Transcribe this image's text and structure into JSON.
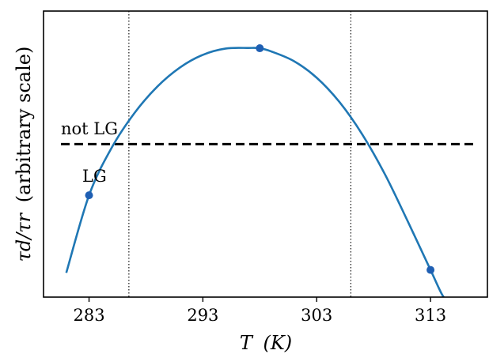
{
  "chart_data": {
    "type": "line",
    "xlabel": "T (K)",
    "xlabel_main": "T",
    "xlabel_paren": "(K)",
    "ylabel": "τd/τr (arbitrary scale)",
    "ylabel_main": "τd/τr",
    "ylabel_paren": "(arbitrary scale)",
    "xlim": [
      279.0,
      318.0
    ],
    "ylim": [
      0,
      10
    ],
    "x_ticks": [
      283,
      293,
      303,
      313
    ],
    "x_tick_labels": [
      "283",
      "293",
      "303",
      "313"
    ],
    "grid": false,
    "series": [
      {
        "color": "#1f77b4",
        "x": [
          281.0,
          283.0,
          285.0,
          287.0,
          289.0,
          291.0,
          293.0,
          295.0,
          297.0,
          298.0,
          299.0,
          301.0,
          303.0,
          305.0,
          307.0,
          309.0,
          311.0,
          313.0,
          314.0,
          314.5
        ],
        "y": [
          0.85,
          3.56,
          5.23,
          6.44,
          7.36,
          8.03,
          8.47,
          8.69,
          8.71,
          8.7,
          8.59,
          8.25,
          7.67,
          6.82,
          5.69,
          4.29,
          2.65,
          0.95,
          0.1,
          -0.15
        ]
      }
    ],
    "markers": {
      "color": "#1f5fb3",
      "x": [
        283.0,
        298.0,
        313.0
      ],
      "y": [
        3.56,
        8.7,
        0.95
      ]
    },
    "threshold": {
      "y": 5.35,
      "style": "dashed",
      "color": "#000000"
    },
    "vlines": {
      "x": [
        286.5,
        306.0
      ],
      "style": "dotted",
      "color": "#000000"
    },
    "annotations": {
      "above": "not LG",
      "below": "LG"
    }
  }
}
